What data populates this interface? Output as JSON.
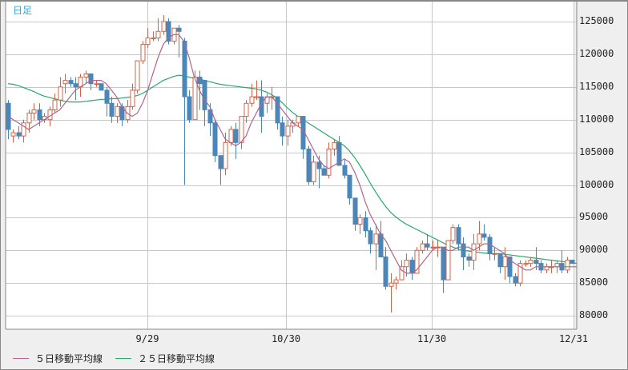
{
  "chart_title": "日足",
  "colors": {
    "up": "#d0644a",
    "down": "#4a86b8",
    "ma5": "#b0648e",
    "ma25": "#2aa86a",
    "grid": "#c8c8c8",
    "title": "#3aa8d8"
  },
  "legend": [
    {
      "label": "５日移動平均線",
      "color": "#b0648e"
    },
    {
      "label": "２５日移動平均線",
      "color": "#2aa86a"
    }
  ],
  "chart_data": {
    "type": "candlestick",
    "title": "日足",
    "xlabel": "",
    "ylabel": "",
    "ylim": [
      78000,
      128000
    ],
    "y_ticks": [
      125000,
      120000,
      115000,
      110000,
      105000,
      100000,
      95000,
      90000,
      85000,
      80000
    ],
    "x_ticks": [
      "9/29",
      "10/30",
      "11/30",
      "12/31"
    ],
    "legend_position": "bottom-left",
    "grid": true,
    "series": [
      {
        "name": "５日移動平均線",
        "type": "line"
      },
      {
        "name": "２５日移動平均線",
        "type": "line"
      }
    ],
    "candles": [
      [
        112500,
        113000,
        107000,
        108500
      ],
      [
        107500,
        108500,
        106500,
        108000
      ],
      [
        108000,
        109000,
        107000,
        107500
      ],
      [
        107500,
        110000,
        106500,
        109500
      ],
      [
        109500,
        111500,
        108000,
        111000
      ],
      [
        111000,
        112500,
        110000,
        111500
      ],
      [
        111500,
        112500,
        109000,
        110000
      ],
      [
        110000,
        111000,
        109500,
        110500
      ],
      [
        110000,
        112000,
        109000,
        111500
      ],
      [
        111500,
        114000,
        111000,
        113000
      ],
      [
        113000,
        116500,
        112000,
        115000
      ],
      [
        115500,
        117000,
        114000,
        116000
      ],
      [
        116000,
        116500,
        115000,
        115500
      ],
      [
        115500,
        116500,
        113000,
        115000
      ],
      [
        115000,
        117000,
        113500,
        116500
      ],
      [
        116500,
        117500,
        115500,
        117000
      ],
      [
        117000,
        117000,
        114500,
        115500
      ],
      [
        115500,
        116000,
        115000,
        115500
      ],
      [
        115500,
        115500,
        114500,
        114500
      ],
      [
        114500,
        115000,
        110500,
        112500
      ],
      [
        112500,
        113500,
        109500,
        110500
      ],
      [
        110500,
        112500,
        109500,
        112000
      ],
      [
        112000,
        112500,
        109000,
        110000
      ],
      [
        110000,
        113000,
        109500,
        112000
      ],
      [
        112000,
        115500,
        111500,
        114500
      ],
      [
        114500,
        119000,
        114000,
        119000
      ],
      [
        119000,
        122000,
        118500,
        121500
      ],
      [
        121500,
        124000,
        121000,
        122500
      ],
      [
        122500,
        123500,
        122000,
        122500
      ],
      [
        122500,
        125500,
        122000,
        123500
      ],
      [
        123500,
        126000,
        123000,
        125000
      ],
      [
        125000,
        125500,
        121500,
        122000
      ],
      [
        122000,
        124000,
        121500,
        124000
      ],
      [
        124000,
        124500,
        119500,
        123500
      ],
      [
        122000,
        122500,
        100000,
        113500
      ],
      [
        113500,
        114500,
        109500,
        110000
      ],
      [
        110000,
        117500,
        110000,
        116500
      ],
      [
        116500,
        117500,
        111500,
        115500
      ],
      [
        116000,
        116000,
        109000,
        111500
      ],
      [
        111500,
        112500,
        107500,
        109500
      ],
      [
        109500,
        110000,
        103500,
        104500
      ],
      [
        104500,
        104500,
        100000,
        102500
      ],
      [
        102500,
        108000,
        101500,
        106500
      ],
      [
        106500,
        109000,
        106000,
        108500
      ],
      [
        108500,
        109500,
        104000,
        106500
      ],
      [
        106500,
        110000,
        105500,
        110500
      ],
      [
        110500,
        113000,
        109500,
        112500
      ],
      [
        112500,
        115500,
        112000,
        113500
      ],
      [
        113500,
        116000,
        113000,
        113500
      ],
      [
        113500,
        116000,
        108000,
        110500
      ],
      [
        112500,
        114000,
        111000,
        113500
      ],
      [
        113500,
        115000,
        111500,
        113500
      ],
      [
        113500,
        113500,
        108500,
        109500
      ],
      [
        109500,
        110500,
        106000,
        107500
      ],
      [
        107500,
        110000,
        106000,
        109000
      ],
      [
        109000,
        110000,
        108000,
        109500
      ],
      [
        109500,
        110500,
        109000,
        110500
      ],
      [
        110500,
        110500,
        104000,
        105500
      ],
      [
        105500,
        106000,
        100000,
        100500
      ],
      [
        100500,
        104500,
        100000,
        103500
      ],
      [
        103500,
        104500,
        99500,
        102500
      ],
      [
        102500,
        103000,
        101500,
        101500
      ],
      [
        101500,
        106500,
        101000,
        105500
      ],
      [
        105500,
        107000,
        104500,
        106500
      ],
      [
        106500,
        107500,
        103500,
        103000
      ],
      [
        103000,
        104000,
        101000,
        101500
      ],
      [
        101500,
        101500,
        97000,
        98000
      ],
      [
        98000,
        98000,
        93000,
        94000
      ],
      [
        94000,
        95500,
        92500,
        95000
      ],
      [
        95000,
        96000,
        92000,
        93000
      ],
      [
        93000,
        93500,
        89500,
        91000
      ],
      [
        91000,
        94000,
        87000,
        92500
      ],
      [
        92500,
        94500,
        89000,
        89000
      ],
      [
        89000,
        90500,
        84000,
        84500
      ],
      [
        84500,
        86500,
        80500,
        85000
      ],
      [
        85000,
        86000,
        84000,
        85500
      ],
      [
        85500,
        88500,
        85500,
        87500
      ],
      [
        87500,
        89500,
        86000,
        88500
      ],
      [
        88500,
        89000,
        85500,
        86500
      ],
      [
        86500,
        90500,
        86500,
        90000
      ],
      [
        90000,
        91500,
        89500,
        91000
      ],
      [
        91000,
        92500,
        90000,
        90500
      ],
      [
        90500,
        91500,
        90000,
        90500
      ],
      [
        90500,
        91500,
        89000,
        90500
      ],
      [
        90500,
        90500,
        83500,
        85500
      ],
      [
        85500,
        91500,
        85500,
        91500
      ],
      [
        91500,
        94000,
        91000,
        93500
      ],
      [
        93500,
        94000,
        90000,
        91000
      ],
      [
        91000,
        92000,
        87000,
        89000
      ],
      [
        89000,
        89500,
        87500,
        88500
      ],
      [
        88500,
        92500,
        87000,
        91000
      ],
      [
        91000,
        94500,
        90000,
        92500
      ],
      [
        92500,
        94000,
        91500,
        92000
      ],
      [
        92000,
        92500,
        88500,
        89500
      ],
      [
        89500,
        90500,
        88500,
        89500
      ],
      [
        89500,
        89500,
        86500,
        87500
      ],
      [
        87500,
        90500,
        85500,
        89000
      ],
      [
        89000,
        89000,
        85000,
        86000
      ],
      [
        86000,
        86500,
        84500,
        85000
      ],
      [
        85000,
        88500,
        84500,
        88000
      ],
      [
        88000,
        88500,
        87500,
        88000
      ],
      [
        88000,
        89000,
        87500,
        88500
      ],
      [
        88500,
        90500,
        87000,
        88000
      ],
      [
        88000,
        88500,
        86500,
        87000
      ],
      [
        87000,
        88000,
        86500,
        87500
      ],
      [
        87500,
        88500,
        86500,
        87500
      ],
      [
        87500,
        88500,
        86500,
        88000
      ],
      [
        88000,
        90000,
        86500,
        87000
      ],
      [
        87000,
        89000,
        86500,
        88500
      ],
      [
        88500,
        88500,
        88000,
        88000
      ]
    ],
    "ma5": [
      110500,
      110000,
      109500,
      109000,
      108500,
      109000,
      109500,
      110000,
      110500,
      111000,
      111500,
      112500,
      113500,
      114500,
      115000,
      115500,
      116000,
      116000,
      116000,
      115500,
      114500,
      113500,
      112000,
      111000,
      110500,
      111000,
      112500,
      114500,
      117000,
      119500,
      121500,
      122500,
      123000,
      123000,
      122000,
      119500,
      116500,
      114500,
      113000,
      112000,
      110000,
      108500,
      107000,
      106500,
      106000,
      106500,
      107500,
      109500,
      111000,
      112500,
      113500,
      113500,
      112500,
      111500,
      110500,
      109500,
      109000,
      108500,
      107000,
      105500,
      104000,
      103000,
      102500,
      103000,
      103500,
      104000,
      103500,
      102000,
      100000,
      97500,
      95500,
      94000,
      92500,
      91500,
      90000,
      88500,
      87000,
      86500,
      86500,
      87000,
      88000,
      89000,
      90000,
      90500,
      90500,
      90000,
      90000,
      90500,
      90500,
      90500,
      90000,
      90500,
      91000,
      91000,
      90500,
      90000,
      89500,
      88500,
      88000,
      87500,
      87000,
      87000,
      87500,
      87500,
      87500,
      87500,
      87500,
      87500,
      87500,
      87500,
      87500
    ],
    "ma25": [
      115500,
      115400,
      115200,
      114900,
      114600,
      114300,
      113900,
      113600,
      113400,
      113200,
      113000,
      112800,
      112700,
      112700,
      112700,
      112800,
      112900,
      113000,
      113100,
      113100,
      113200,
      113200,
      113300,
      113400,
      113500,
      113700,
      114000,
      114500,
      115000,
      115500,
      116000,
      116300,
      116600,
      116800,
      116700,
      116500,
      116300,
      116200,
      116000,
      115800,
      115600,
      115400,
      115300,
      115200,
      115100,
      115000,
      114900,
      114800,
      114700,
      114500,
      114200,
      113800,
      113300,
      112600,
      111800,
      111100,
      110500,
      110000,
      109500,
      109000,
      108500,
      108000,
      107500,
      107000,
      106500,
      106000,
      105200,
      104200,
      103000,
      101700,
      100300,
      99000,
      97800,
      96700,
      95800,
      95100,
      94500,
      94000,
      93600,
      93200,
      92800,
      92400,
      92000,
      91600,
      91200,
      90800,
      90500,
      90200,
      90000,
      89900,
      89800,
      89700,
      89600,
      89500,
      89500,
      89500,
      89400,
      89300,
      89200,
      89100,
      89000,
      88900,
      88800,
      88700,
      88600,
      88500,
      88400,
      88300,
      88200,
      88100,
      88000
    ]
  }
}
